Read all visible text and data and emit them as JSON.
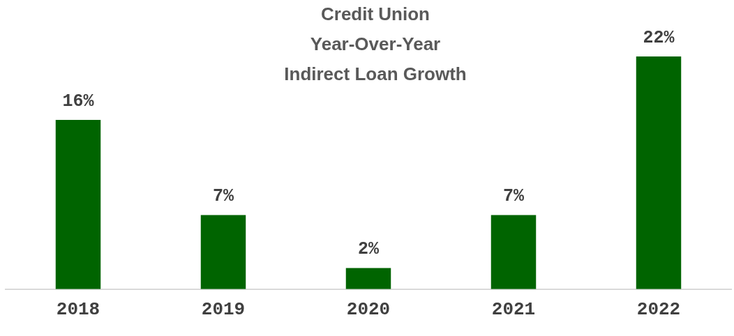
{
  "chart_data": {
    "type": "bar",
    "title": "Credit Union\nYear-Over-Year\nIndirect Loan Growth",
    "categories": [
      "2018",
      "2019",
      "2020",
      "2021",
      "2022"
    ],
    "values": [
      16,
      7,
      2,
      7,
      22
    ],
    "color": "#006400",
    "value_labels": [
      "16%",
      "7%",
      "2%",
      "7%",
      "22%"
    ],
    "grid": false,
    "legend": false
  }
}
